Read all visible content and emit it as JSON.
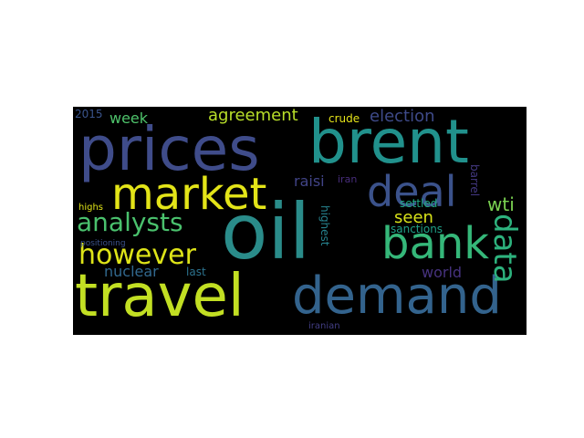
{
  "word_cloud": {
    "background": "#000000",
    "words": [
      {
        "id": "oil",
        "text": "oil",
        "color": "#2a8c8a"
      },
      {
        "id": "prices",
        "text": "prices",
        "color": "#3f4c8a"
      },
      {
        "id": "brent",
        "text": "brent",
        "color": "#21918c"
      },
      {
        "id": "travel",
        "text": "travel",
        "color": "#c2df23"
      },
      {
        "id": "demand",
        "text": "demand",
        "color": "#33638d"
      },
      {
        "id": "market",
        "text": "market",
        "color": "#e3e418"
      },
      {
        "id": "deal",
        "text": "deal",
        "color": "#3b528b"
      },
      {
        "id": "bank",
        "text": "bank",
        "color": "#35b779"
      },
      {
        "id": "analysts",
        "text": "analysts",
        "color": "#4ac16d"
      },
      {
        "id": "however",
        "text": "however",
        "color": "#dde318"
      },
      {
        "id": "data",
        "text": "data",
        "color": "#2db27d"
      },
      {
        "id": "agreement",
        "text": "agreement",
        "color": "#b8de29"
      },
      {
        "id": "election",
        "text": "election",
        "color": "#3e4a89"
      },
      {
        "id": "week",
        "text": "week",
        "color": "#4ec36b"
      },
      {
        "id": "wti",
        "text": "wti",
        "color": "#7ad151"
      },
      {
        "id": "nuclear",
        "text": "nuclear",
        "color": "#31688e"
      },
      {
        "id": "world",
        "text": "world",
        "color": "#46327e"
      },
      {
        "id": "raisi",
        "text": "raisi",
        "color": "#414487"
      },
      {
        "id": "seen",
        "text": "seen",
        "color": "#d8e219"
      },
      {
        "id": "crude",
        "text": "crude",
        "color": "#e5e419"
      },
      {
        "id": "settled",
        "text": "settled",
        "color": "#22a884"
      },
      {
        "id": "sanctions",
        "text": "sanctions",
        "color": "#1fa187"
      },
      {
        "id": "iran",
        "text": "iran",
        "color": "#472d7b"
      },
      {
        "id": "highest",
        "text": "highest",
        "color": "#26828e"
      },
      {
        "id": "barrel",
        "text": "barrel",
        "color": "#443983"
      },
      {
        "id": "last",
        "text": "last",
        "color": "#2c728e"
      },
      {
        "id": "highs",
        "text": "highs",
        "color": "#dfe318"
      },
      {
        "id": "positioning",
        "text": "positioning",
        "color": "#3b528b"
      },
      {
        "id": "2015",
        "text": "2015",
        "color": "#3a548c"
      },
      {
        "id": "iranian",
        "text": "iranian",
        "color": "#433e85"
      }
    ]
  }
}
